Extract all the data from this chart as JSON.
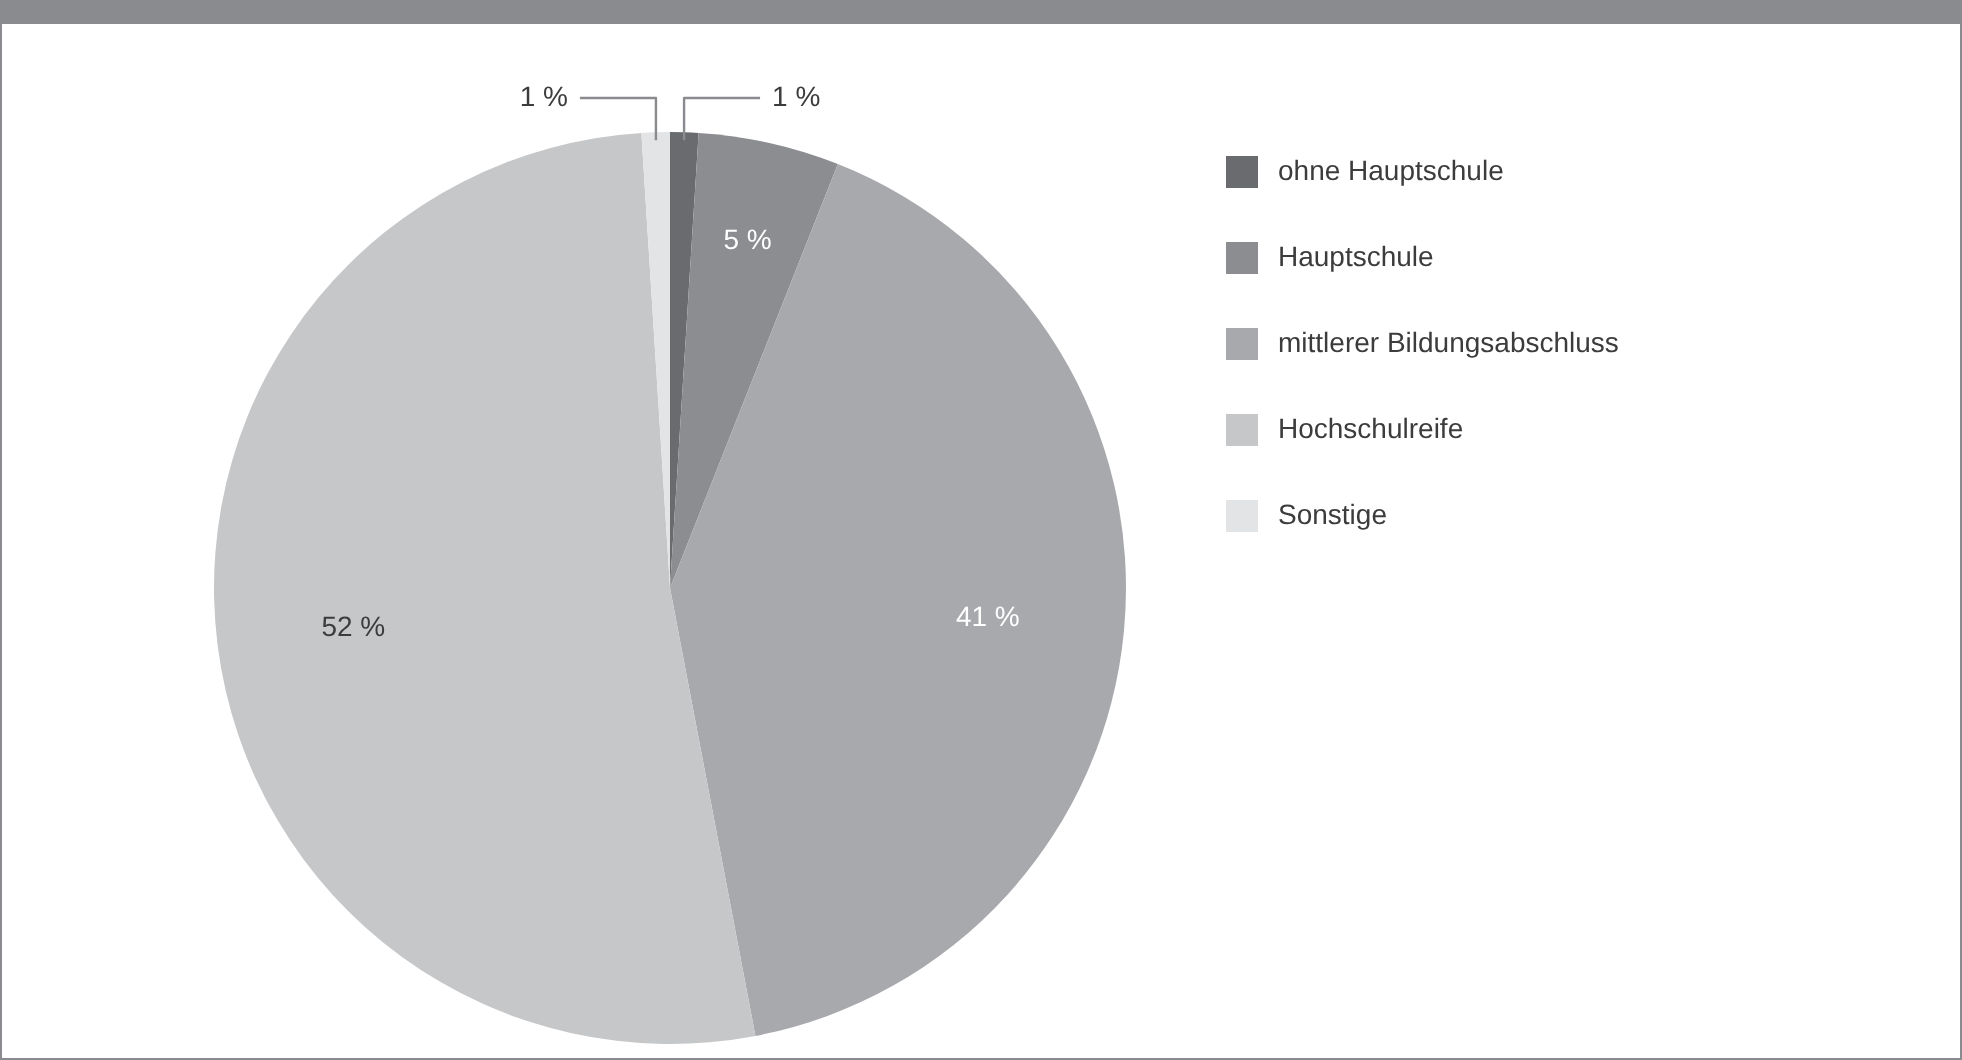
{
  "chart_data": {
    "type": "pie",
    "categories": [
      "ohne Hauptschule",
      "Hauptschule",
      "mittlerer Bildungsabschluss",
      "Hochschulreife",
      "Sonstige"
    ],
    "values": [
      1,
      5,
      41,
      52,
      1
    ],
    "value_labels": [
      "1 %",
      "5 %",
      "41 %",
      "52 %",
      "1 %"
    ],
    "colors": [
      "#6a6b6f",
      "#8c8d91",
      "#a8a9ac",
      "#c6c7c9",
      "#e3e4e5"
    ],
    "legend": "right"
  }
}
